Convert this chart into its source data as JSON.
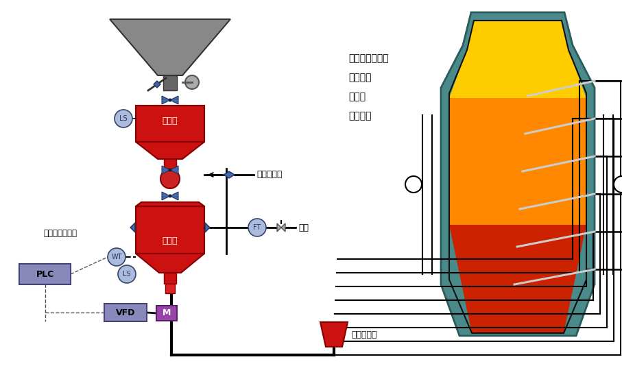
{
  "bg_color": "#ffffff",
  "fig_width": 9.07,
  "fig_height": 5.72,
  "labels": {
    "shouliao_tank": "收料罐",
    "penchu_tank": "喷吹罐",
    "liuhua": "流化加压气",
    "qiyuan": "气源",
    "gualiao": "给料里连续可调",
    "plc": "PLC",
    "vfd": "VFD",
    "M": "M",
    "WT": "WT",
    "LS1": "LS",
    "LS2": "LS",
    "FT": "FT",
    "guanlu": "管路分配器",
    "furnace_labels": [
      "循环流化床锅炉",
      "炼铁高炉",
      "熔炼炉",
      "炼钢电炉"
    ]
  },
  "colors": {
    "red": "#cc1111",
    "dark_red": "#880000",
    "blue_valve": "#4466aa",
    "gray_hopper": "#888888",
    "gray_dark": "#555555",
    "teal": "#4a8a8a",
    "yellow": "#ffcc00",
    "orange": "#ff8800",
    "orange_red": "#ff4400",
    "red2": "#cc2200",
    "purple": "#9944aa",
    "plc_box": "#8888bb",
    "vfd_box": "#8888bb",
    "black": "#000000",
    "white": "#ffffff",
    "line_color": "#111111",
    "instrument": "#aabbdd",
    "instrument_edge": "#334466",
    "instrument_text": "#223355"
  }
}
